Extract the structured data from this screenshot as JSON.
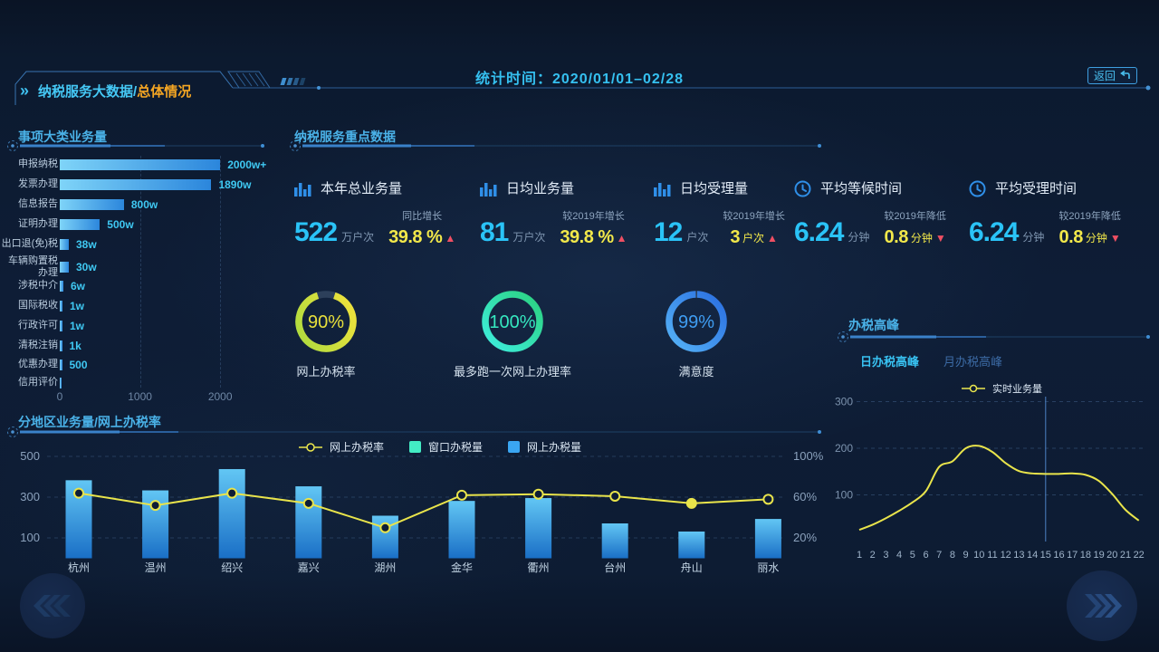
{
  "header": {
    "breadcrumb": {
      "main": "纳税服务大数据/",
      "sub": "总体情况"
    },
    "stat_time_label": "统计时间：",
    "stat_time_value": "2020/01/01–02/28",
    "back_label": "返回"
  },
  "sections": {
    "category": {
      "title": "事项大类业务量"
    },
    "key_data": {
      "title": "纳税服务重点数据"
    },
    "peak": {
      "title": "办税高峰"
    },
    "region": {
      "title": "分地区业务量/网上办税率"
    }
  },
  "stats": [
    {
      "icon": "bar-chart-icon",
      "title": "本年总业务量",
      "value": "522",
      "unit": "万户次",
      "change_label": "同比增长",
      "change_value": "39.8 %",
      "change_unit": "",
      "trend": "up"
    },
    {
      "icon": "bar-chart-icon",
      "title": "日均业务量",
      "value": "81",
      "unit": "万户次",
      "change_label": "较2019年增长",
      "change_value": "39.8 %",
      "change_unit": "",
      "trend": "up"
    },
    {
      "icon": "bar-chart-icon",
      "title": "日均受理量",
      "value": "12",
      "unit": "户次",
      "change_label": "较2019年增长",
      "change_value": "3",
      "change_unit": "户次",
      "trend": "up"
    },
    {
      "icon": "clock-icon",
      "title": "平均等候时间",
      "value": "6.24",
      "unit": "分钟",
      "change_label": "较2019年降低",
      "change_value": "0.8",
      "change_unit": "分钟",
      "trend": "down"
    },
    {
      "icon": "clock-icon",
      "title": "平均受理时间",
      "value": "6.24",
      "unit": "分钟",
      "change_label": "较2019年降低",
      "change_value": "0.8",
      "change_unit": "分钟",
      "trend": "down"
    }
  ],
  "donuts": [
    {
      "percent": "90%",
      "value": 90,
      "label": "网上办税率",
      "color1": "#aadb3e",
      "color2": "#f4e23c",
      "text_color": "#e8e03c"
    },
    {
      "percent": "100%",
      "value": 100,
      "label": "最多跑一次网上办理率",
      "color1": "#3eeee0",
      "color2": "#2bd17e",
      "text_color": "#35e8c0"
    },
    {
      "percent": "99%",
      "value": 99,
      "label": "满意度",
      "color1": "#55b3f7",
      "color2": "#2a6ee0",
      "text_color": "#3f9df2"
    }
  ],
  "category_chart": {
    "chart_data": {
      "type": "bar",
      "orientation": "horizontal",
      "items": [
        {
          "label": "申报纳税",
          "value": 2000,
          "display": "2000w+"
        },
        {
          "label": "发票办理",
          "value": 1890,
          "display": "1890w"
        },
        {
          "label": "信息报告",
          "value": 800,
          "display": "800w"
        },
        {
          "label": "证明办理",
          "value": 500,
          "display": "500w"
        },
        {
          "label": "出口退(免)税",
          "value": 38,
          "display": "38w"
        },
        {
          "label": [
            "车辆购置税",
            "办理"
          ],
          "value": 30,
          "display": "30w"
        },
        {
          "label": "涉税中介",
          "value": 6,
          "display": "6w"
        },
        {
          "label": "国际税收",
          "value": 1,
          "display": "1w"
        },
        {
          "label": "行政许可",
          "value": 1,
          "display": "1w"
        },
        {
          "label": "清税注销",
          "value": 0.1,
          "display": "1k"
        },
        {
          "label": "优惠办理",
          "value": 0.05,
          "display": "500"
        },
        {
          "label": "信用评价",
          "value": 0,
          "display": ""
        }
      ],
      "x_ticks": [
        "0",
        "1000",
        "2000"
      ]
    }
  },
  "peak_panel": {
    "tabs": [
      {
        "label": "日办税高峰",
        "active": true
      },
      {
        "label": "月办税高峰",
        "active": false
      }
    ],
    "legend": "实时业务量",
    "chart_data": {
      "type": "line",
      "x": [
        "1",
        "2",
        "3",
        "4",
        "5",
        "6",
        "7",
        "8",
        "9",
        "10",
        "11",
        "12",
        "13",
        "14",
        "15",
        "16",
        "17",
        "18",
        "19",
        "20",
        "21",
        "22"
      ],
      "values": [
        25,
        36,
        50,
        66,
        84,
        108,
        160,
        172,
        200,
        205,
        192,
        168,
        151,
        146,
        145,
        145,
        146,
        143,
        130,
        102,
        68,
        45
      ],
      "y_ticks": [
        "100",
        "200",
        "300"
      ],
      "ylim": [
        0,
        300
      ],
      "marker_x": 15
    }
  },
  "region_panel": {
    "legend": [
      {
        "label": "网上办税率",
        "marker": "line",
        "color": "#ece84e"
      },
      {
        "label": "窗口办税量",
        "marker": "square",
        "color": "#43ecc4"
      },
      {
        "label": "网上办税量",
        "marker": "square",
        "color": "#3aa6f2"
      }
    ],
    "chart_data": {
      "type": "bar+line",
      "categories": [
        "杭州",
        "温州",
        "绍兴",
        "嘉兴",
        "湖州",
        "金华",
        "衢州",
        "台州",
        "舟山",
        "丽水"
      ],
      "series": [
        {
          "name": "网上办税量",
          "type": "bar",
          "values": [
            385,
            335,
            440,
            355,
            210,
            283,
            297,
            172,
            132,
            194
          ]
        },
        {
          "name": "网上办税率",
          "type": "line",
          "unit": "%",
          "values": [
            64,
            52,
            64,
            54,
            30,
            62,
            63,
            61,
            54,
            58
          ]
        }
      ],
      "left_ticks": [
        "100",
        "300",
        "500"
      ],
      "right_ticks": [
        "20%",
        "60%",
        "100%"
      ]
    }
  }
}
